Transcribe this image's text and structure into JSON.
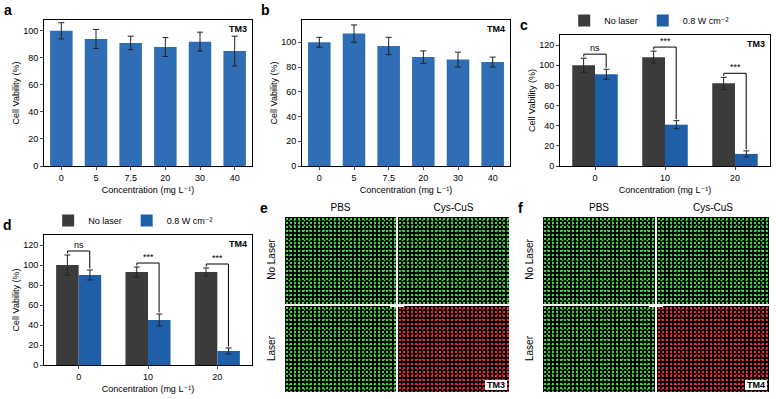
{
  "chart_data": [
    {
      "panel_label": "a",
      "annotation": "TM3",
      "type": "bar",
      "categories": [
        "0",
        "5",
        "7.5",
        "20",
        "30",
        "40"
      ],
      "values": [
        100,
        94,
        91,
        88,
        92,
        85
      ],
      "errors": [
        6,
        7,
        5,
        7,
        7,
        11
      ],
      "color": "#2f6db5",
      "ylim": [
        0,
        108
      ],
      "yticks": [
        0,
        20,
        40,
        60,
        80,
        100
      ],
      "x_label": "Concentration (mg L⁻¹)",
      "y_label": "Cell Vability (%)"
    },
    {
      "panel_label": "b",
      "annotation": "TM4",
      "type": "bar",
      "categories": [
        "0",
        "5",
        "7.5",
        "20",
        "30",
        "40"
      ],
      "values": [
        100,
        107,
        97,
        88,
        86,
        84
      ],
      "errors": [
        4,
        7,
        7,
        5,
        6,
        4
      ],
      "color": "#2f6db5",
      "ylim": [
        0,
        118
      ],
      "yticks": [
        0,
        20,
        40,
        60,
        80,
        100
      ],
      "x_label": "Concentration (mg L⁻¹)",
      "y_label": "Cell Vability (%)"
    },
    {
      "panel_label": "c",
      "annotation": "TM3",
      "type": "bar",
      "categories": [
        "0",
        "10",
        "20"
      ],
      "series": [
        {
          "name": "No laser",
          "color": "#3b3b3b",
          "values": [
            100,
            108,
            82
          ],
          "errors": [
            7,
            6,
            6
          ]
        },
        {
          "name": "0.8 W cm⁻²",
          "color": "#1f5fa8",
          "values": [
            91,
            41,
            12
          ],
          "errors": [
            5,
            4,
            3
          ]
        }
      ],
      "significance": [
        "ns",
        "***",
        "***"
      ],
      "legend": "top",
      "ylim": [
        0,
        130
      ],
      "yticks": [
        0,
        20,
        40,
        60,
        80,
        100,
        120
      ],
      "x_label": "Concentration (mg L⁻¹)",
      "y_label": "Cell Vability (%)"
    },
    {
      "panel_label": "d",
      "annotation": "TM4",
      "type": "bar",
      "categories": [
        "0",
        "10",
        "20"
      ],
      "series": [
        {
          "name": "No laser",
          "color": "#3b3b3b",
          "values": [
            100,
            93,
            93
          ],
          "errors": [
            10,
            5,
            4
          ]
        },
        {
          "name": "0.8 W cm⁻²",
          "color": "#1f5fa8",
          "values": [
            90,
            45,
            14
          ],
          "errors": [
            5,
            6,
            3
          ]
        }
      ],
      "significance": [
        "ns",
        "***",
        "***"
      ],
      "legend": "top",
      "ylim": [
        0,
        130
      ],
      "yticks": [
        0,
        20,
        40,
        60,
        80,
        100,
        120
      ],
      "x_label": "Concentration (mg L⁻¹)",
      "y_label": "Cell Vability (%)"
    }
  ],
  "images": [
    {
      "panel_label": "e",
      "annotation": "TM3",
      "columns": [
        "PBS",
        "Cys-CuS"
      ],
      "rows": [
        "No Laser",
        "Laser"
      ],
      "cells": [
        [
          "#3fd13f",
          "#3fd13f"
        ],
        [
          "#3fd13f",
          "#e0303a"
        ]
      ]
    },
    {
      "panel_label": "f",
      "annotation": "TM4",
      "columns": [
        "PBS",
        "Cys-CuS"
      ],
      "rows": [
        "No Laser",
        "Laser"
      ],
      "cells": [
        [
          "#3fd13f",
          "#3fd13f"
        ],
        [
          "#3fd13f",
          "#e0303a"
        ]
      ]
    }
  ]
}
